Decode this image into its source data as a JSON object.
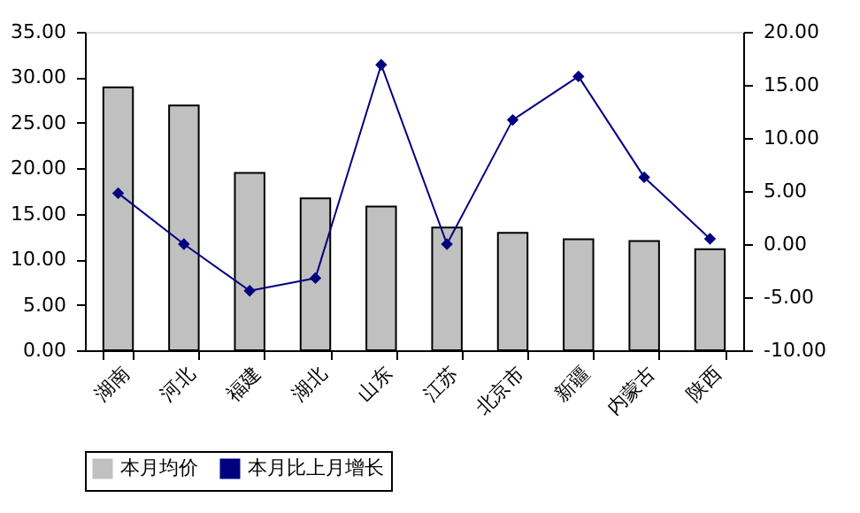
{
  "chart_data": {
    "type": "bar",
    "categories": [
      "湖南",
      "河北",
      "福建",
      "湖北",
      "山东",
      "江苏",
      "北京市",
      "新疆",
      "内蒙古",
      "陕西"
    ],
    "series": [
      {
        "name": "本月均价",
        "color": "#c0c0c0",
        "values": [
          28.9,
          26.9,
          19.5,
          16.7,
          15.8,
          13.5,
          12.9,
          12.2,
          12.0,
          11.1
        ]
      },
      {
        "name": "本月比上月增长",
        "type": "line",
        "axis": "y2",
        "color": "#000080",
        "values": [
          4.8,
          0.0,
          -4.4,
          -3.2,
          16.9,
          0.0,
          11.7,
          15.8,
          6.3,
          0.5
        ]
      }
    ],
    "ylim": [
      0,
      35
    ],
    "yticks": [
      {
        "value": 0,
        "label": "0.00"
      },
      {
        "value": 5,
        "label": "5.00"
      },
      {
        "value": 10,
        "label": "10.00"
      },
      {
        "value": 15,
        "label": "15.00"
      },
      {
        "value": 20,
        "label": "20.00"
      },
      {
        "value": 25,
        "label": "25.00"
      },
      {
        "value": 30,
        "label": "30.00"
      },
      {
        "value": 35,
        "label": "35.00"
      }
    ],
    "y2lim": [
      -10,
      20
    ],
    "y2ticks": [
      {
        "value": -10,
        "label": "-10.00"
      },
      {
        "value": -5,
        "label": "-5.00"
      },
      {
        "value": 0,
        "label": "0.00"
      },
      {
        "value": 5,
        "label": "5.00"
      },
      {
        "value": 10,
        "label": "10.00"
      },
      {
        "value": 15,
        "label": "15.00"
      },
      {
        "value": 20,
        "label": "20.00"
      }
    ],
    "grid": false,
    "legend": "bottom",
    "marker": "diamond",
    "line_style": "solid"
  }
}
